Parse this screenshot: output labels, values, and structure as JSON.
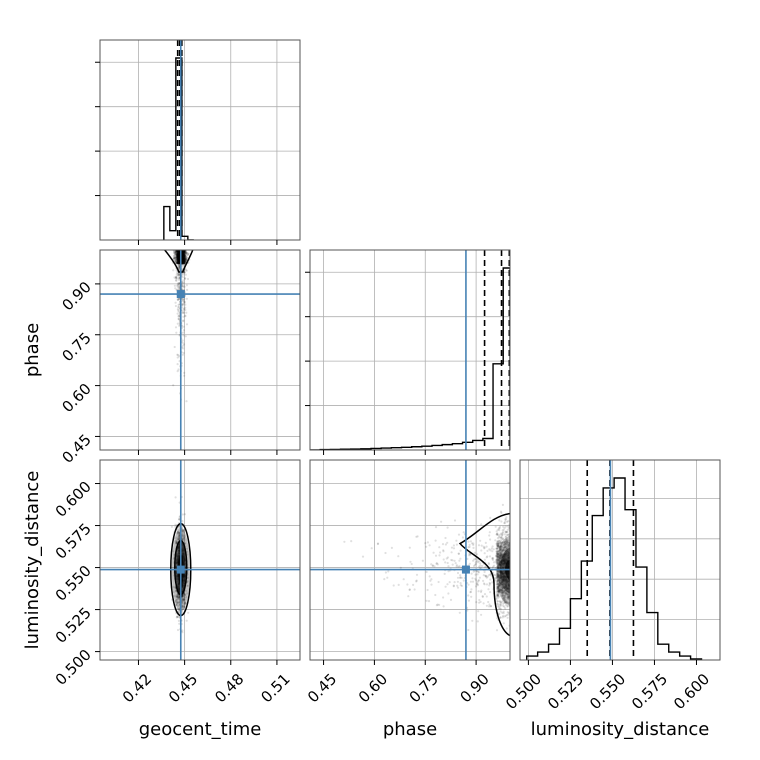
{
  "chart_data": {
    "type": "corner",
    "parameters": [
      "geocent_time",
      "phase",
      "luminosity_distance"
    ],
    "truths": {
      "geocent_time": 0.4475,
      "phase": 0.87,
      "luminosity_distance": 0.5488
    },
    "truth_color": "#4682b4",
    "grid": true,
    "axes": {
      "geocent_time": {
        "range": [
          0.395,
          0.525
        ],
        "ticks": [
          0.42,
          0.45,
          0.48,
          0.51
        ],
        "tick_labels": [
          "0.42",
          "0.45",
          "0.48",
          "0.51"
        ],
        "label": "geocent_time"
      },
      "phase": {
        "range": [
          0.41,
          1.0
        ],
        "ticks": [
          0.45,
          0.6,
          0.75,
          0.9
        ],
        "tick_labels": [
          "0.45",
          "0.60",
          "0.75",
          "0.90"
        ],
        "label": "phase"
      },
      "luminosity_distance": {
        "range": [
          0.495,
          0.614
        ],
        "ticks": [
          0.5,
          0.525,
          0.55,
          0.575,
          0.6
        ],
        "tick_labels": [
          "0.500",
          "0.525",
          "0.550",
          "0.575",
          "0.600"
        ],
        "label": "luminosity_distance"
      }
    },
    "histograms": {
      "geocent_time": {
        "bin_edges": [
          0.4365,
          0.4404,
          0.4443,
          0.4482,
          0.4521,
          0.456
        ],
        "counts": [
          0.18,
          0.05,
          0.98,
          0.02,
          0.0
        ],
        "quantiles": [
          0.4455,
          0.4468,
          0.4482
        ]
      },
      "phase": {
        "bin_edges": [
          0.41,
          0.44,
          0.47,
          0.5,
          0.53,
          0.56,
          0.59,
          0.62,
          0.65,
          0.68,
          0.71,
          0.74,
          0.77,
          0.8,
          0.83,
          0.86,
          0.89,
          0.92,
          0.95,
          0.98,
          1.0
        ],
        "counts": [
          0.0,
          0.002,
          0.003,
          0.004,
          0.005,
          0.006,
          0.008,
          0.01,
          0.012,
          0.014,
          0.017,
          0.02,
          0.024,
          0.028,
          0.033,
          0.04,
          0.05,
          0.06,
          0.45,
          0.95
        ],
        "quantiles": [
          0.925,
          0.975,
          0.998
        ]
      },
      "luminosity_distance": {
        "bin_edges": [
          0.499,
          0.5055,
          0.512,
          0.5185,
          0.525,
          0.5315,
          0.538,
          0.5445,
          0.551,
          0.5575,
          0.564,
          0.5705,
          0.577,
          0.5835,
          0.59,
          0.5965,
          0.603
        ],
        "counts": [
          0.02,
          0.04,
          0.08,
          0.16,
          0.31,
          0.5,
          0.73,
          0.87,
          0.92,
          0.76,
          0.47,
          0.24,
          0.08,
          0.04,
          0.02,
          0.005
        ],
        "quantiles": [
          0.535,
          0.5485,
          0.5625
        ]
      }
    },
    "scatter_panels": [
      {
        "x": "geocent_time",
        "y": "phase",
        "x_center": 0.4475,
        "x_sd": 0.0018,
        "y_concentration": "high"
      },
      {
        "x": "geocent_time",
        "y": "luminosity_distance",
        "x_center": 0.4475,
        "x_sd": 0.0018,
        "y_center": 0.549,
        "y_sd": 0.012
      },
      {
        "x": "phase",
        "y": "luminosity_distance",
        "y_center": 0.549,
        "y_sd": 0.012,
        "x_concentration": "high"
      }
    ]
  }
}
